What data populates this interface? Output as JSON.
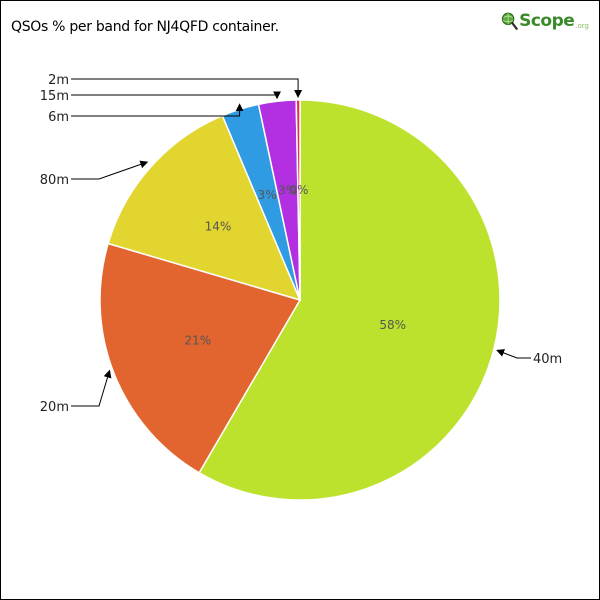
{
  "chart_data": {
    "type": "pie",
    "title": "QSOs % per band for NJ4QFD container.",
    "slices": [
      {
        "name": "40m",
        "value": 58,
        "label": "58%",
        "color": "#bde22e"
      },
      {
        "name": "20m",
        "value": 21,
        "label": "21%",
        "color": "#e2652f"
      },
      {
        "name": "80m",
        "value": 14,
        "label": "14%",
        "color": "#e2d52f"
      },
      {
        "name": "6m",
        "value": 3,
        "label": "3%",
        "color": "#2f9be2"
      },
      {
        "name": "15m",
        "value": 3,
        "label": "3%",
        "color": "#b22fe2"
      },
      {
        "name": "2m",
        "value": 0.3,
        "label": "0%",
        "color": "#e22f5f"
      }
    ]
  },
  "logo": {
    "word": "Scope",
    "suffix": ".org"
  }
}
